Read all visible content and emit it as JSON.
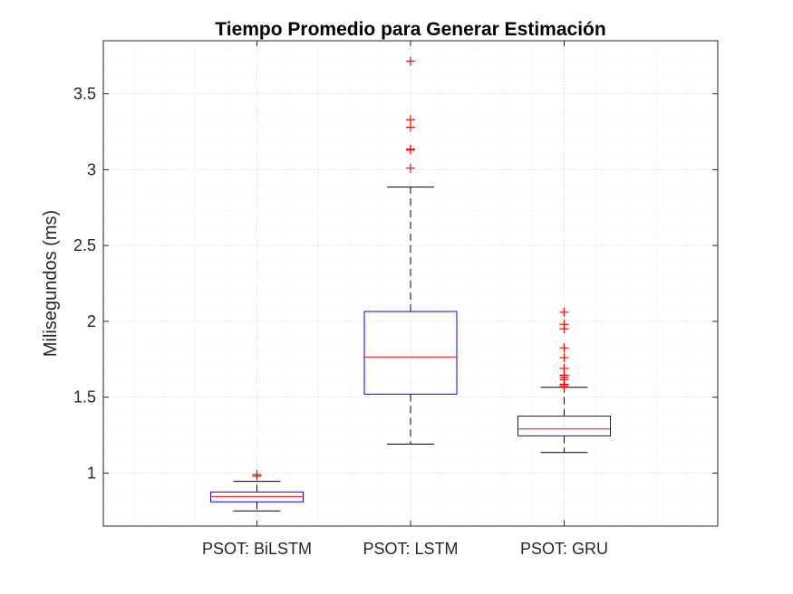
{
  "chart_data": {
    "type": "box",
    "title": "Tiempo Promedio para Generar Estimación",
    "xlabel": "",
    "ylabel": "Milisegundos (ms)",
    "ylim": [
      0.65,
      3.85
    ],
    "yticks": [
      1,
      1.5,
      2,
      2.5,
      3,
      3.5
    ],
    "ytick_labels": [
      "1",
      "1.5",
      "2",
      "2.5",
      "3",
      "3.5"
    ],
    "grid": true,
    "minor_grid": true,
    "categories": [
      "PSOT: BiLSTM",
      "PSOT: LSTM",
      "PSOT: GRU"
    ],
    "boxes": [
      {
        "category": "PSOT: BiLSTM",
        "whisker_low": 0.75,
        "q1": 0.81,
        "median": 0.845,
        "q3": 0.875,
        "whisker_high": 0.945,
        "outliers": [
          0.98,
          0.99
        ]
      },
      {
        "category": "PSOT: LSTM",
        "whisker_low": 1.19,
        "q1": 1.52,
        "median": 1.765,
        "q3": 2.065,
        "whisker_high": 2.885,
        "outliers": [
          3.01,
          3.13,
          3.135,
          3.28,
          3.33,
          3.715
        ]
      },
      {
        "category": "PSOT: GRU",
        "whisker_low": 1.135,
        "q1": 1.245,
        "median": 1.29,
        "q3": 1.375,
        "whisker_high": 1.565,
        "outliers": [
          1.575,
          1.585,
          1.615,
          1.63,
          1.645,
          1.69,
          1.76,
          1.825,
          1.95,
          1.98,
          2.06
        ]
      }
    ],
    "colors": {
      "box": "#0000ff",
      "median": "#ff0000",
      "whisker": "#000000",
      "outlier": "#ff0000",
      "grid": "#cfcfcf",
      "axes": "#262626"
    }
  }
}
